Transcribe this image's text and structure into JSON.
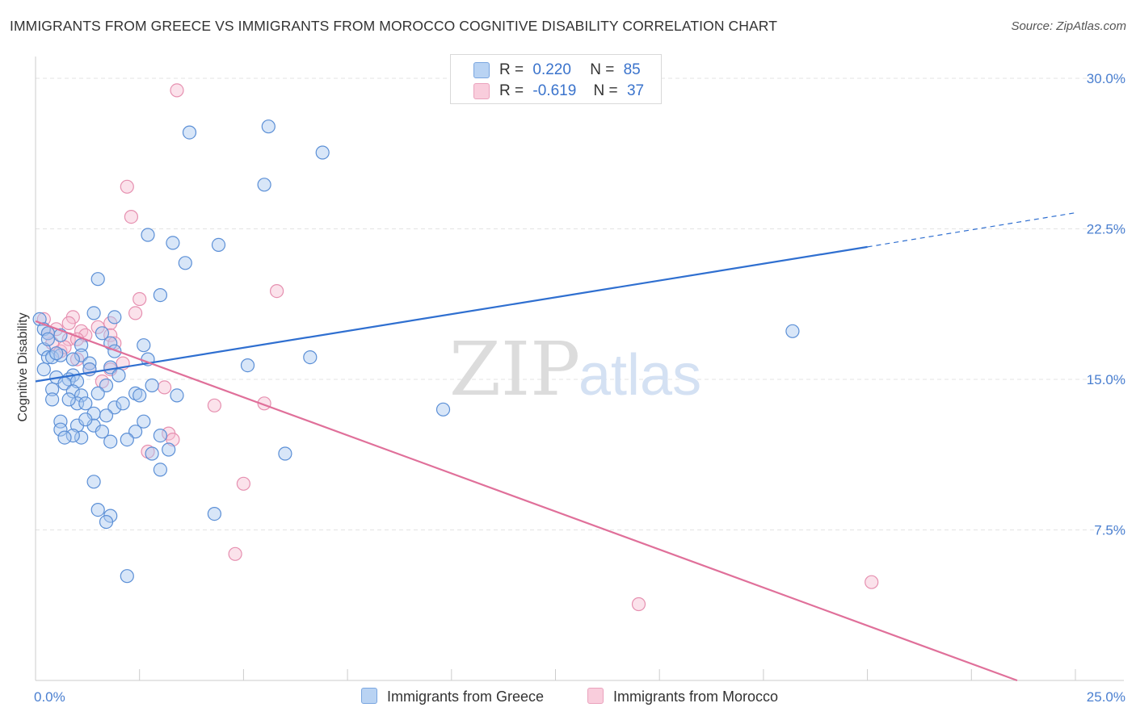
{
  "title": "IMMIGRANTS FROM GREECE VS IMMIGRANTS FROM MOROCCO COGNITIVE DISABILITY CORRELATION CHART",
  "source": "Source: ZipAtlas.com",
  "watermark": {
    "zip": "ZIP",
    "atlas": "atlas"
  },
  "legend": {
    "greece": {
      "r_label": "R =",
      "r_value": "0.220",
      "n_label": "N =",
      "n_value": "85"
    },
    "morocco": {
      "r_label": "R =",
      "r_value": "-0.619",
      "n_label": "N =",
      "n_value": "37"
    }
  },
  "colors": {
    "greece_fill": "#a9c8f0",
    "greece_stroke": "#5b8fd6",
    "greece_line": "#2f6fd0",
    "morocco_fill": "#f7bfd2",
    "morocco_stroke": "#e690b0",
    "morocco_line": "#e0709a",
    "axis_text": "#4a7fd0",
    "grid": "#e3e3e3"
  },
  "chart_data": {
    "type": "scatter",
    "title": "IMMIGRANTS FROM GREECE VS IMMIGRANTS FROM MOROCCO COGNITIVE DISABILITY CORRELATION CHART",
    "xlabel": "",
    "ylabel": "Cognitive Disability",
    "xlim": [
      0,
      25
    ],
    "ylim": [
      0,
      30.5
    ],
    "y_ticks": [
      7.5,
      15.0,
      22.5,
      30.0
    ],
    "y_tick_labels": [
      "7.5%",
      "15.0%",
      "22.5%",
      "30.0%"
    ],
    "x_tick_labels": [
      "0.0%",
      "25.0%"
    ],
    "grid": true,
    "legend_position": "top-center",
    "series": [
      {
        "name": "Immigrants from Greece",
        "points": [
          [
            3.7,
            27.3
          ],
          [
            5.6,
            27.6
          ],
          [
            6.9,
            26.3
          ],
          [
            5.5,
            24.7
          ],
          [
            2.7,
            22.2
          ],
          [
            3.3,
            21.8
          ],
          [
            4.4,
            21.7
          ],
          [
            3.6,
            20.8
          ],
          [
            1.5,
            20.0
          ],
          [
            3.0,
            19.2
          ],
          [
            1.4,
            18.3
          ],
          [
            1.9,
            18.1
          ],
          [
            0.1,
            18.0
          ],
          [
            0.2,
            17.5
          ],
          [
            0.3,
            17.3
          ],
          [
            1.6,
            17.3
          ],
          [
            1.8,
            16.8
          ],
          [
            2.6,
            16.7
          ],
          [
            1.1,
            16.7
          ],
          [
            0.2,
            16.5
          ],
          [
            1.9,
            16.4
          ],
          [
            0.3,
            16.1
          ],
          [
            0.4,
            16.1
          ],
          [
            0.6,
            16.2
          ],
          [
            1.1,
            16.2
          ],
          [
            2.7,
            16.0
          ],
          [
            6.6,
            16.1
          ],
          [
            5.1,
            15.7
          ],
          [
            1.3,
            15.8
          ],
          [
            1.8,
            15.6
          ],
          [
            0.9,
            15.2
          ],
          [
            0.5,
            15.1
          ],
          [
            0.8,
            15.0
          ],
          [
            1.0,
            14.9
          ],
          [
            0.7,
            14.8
          ],
          [
            1.7,
            14.7
          ],
          [
            2.8,
            14.7
          ],
          [
            0.4,
            14.5
          ],
          [
            0.9,
            14.4
          ],
          [
            1.1,
            14.2
          ],
          [
            1.5,
            14.3
          ],
          [
            2.4,
            14.3
          ],
          [
            2.5,
            14.2
          ],
          [
            3.4,
            14.2
          ],
          [
            0.4,
            14.0
          ],
          [
            1.0,
            13.8
          ],
          [
            1.2,
            13.8
          ],
          [
            1.9,
            13.6
          ],
          [
            1.4,
            13.3
          ],
          [
            1.7,
            13.2
          ],
          [
            0.6,
            12.9
          ],
          [
            1.0,
            12.7
          ],
          [
            1.4,
            12.7
          ],
          [
            0.6,
            12.5
          ],
          [
            2.6,
            12.9
          ],
          [
            2.4,
            12.4
          ],
          [
            1.1,
            12.1
          ],
          [
            0.9,
            12.2
          ],
          [
            0.7,
            12.1
          ],
          [
            1.8,
            11.9
          ],
          [
            2.2,
            12.0
          ],
          [
            3.0,
            12.2
          ],
          [
            3.2,
            11.5
          ],
          [
            2.8,
            11.3
          ],
          [
            6.0,
            11.3
          ],
          [
            3.0,
            10.5
          ],
          [
            1.4,
            9.9
          ],
          [
            1.5,
            8.5
          ],
          [
            1.8,
            8.2
          ],
          [
            1.7,
            7.9
          ],
          [
            4.3,
            8.3
          ],
          [
            2.2,
            5.2
          ],
          [
            9.8,
            13.5
          ],
          [
            18.2,
            17.4
          ],
          [
            0.3,
            17.0
          ],
          [
            0.5,
            16.3
          ],
          [
            0.2,
            15.5
          ],
          [
            0.8,
            14.0
          ],
          [
            1.2,
            13.0
          ],
          [
            1.6,
            12.4
          ],
          [
            2.0,
            15.2
          ],
          [
            0.6,
            17.2
          ],
          [
            0.9,
            16.0
          ],
          [
            1.3,
            15.5
          ],
          [
            2.1,
            13.8
          ]
        ]
      },
      {
        "name": "Immigrants from Morocco",
        "points": [
          [
            3.4,
            29.4
          ],
          [
            2.2,
            24.6
          ],
          [
            2.3,
            23.1
          ],
          [
            5.8,
            19.4
          ],
          [
            2.5,
            19.0
          ],
          [
            2.4,
            18.3
          ],
          [
            0.2,
            18.0
          ],
          [
            0.9,
            18.1
          ],
          [
            0.8,
            17.8
          ],
          [
            1.8,
            17.8
          ],
          [
            0.5,
            17.5
          ],
          [
            1.5,
            17.6
          ],
          [
            1.1,
            17.4
          ],
          [
            1.2,
            17.2
          ],
          [
            1.8,
            17.2
          ],
          [
            0.8,
            17.0
          ],
          [
            1.0,
            17.0
          ],
          [
            1.9,
            16.8
          ],
          [
            0.4,
            16.8
          ],
          [
            0.6,
            16.4
          ],
          [
            1.0,
            16.0
          ],
          [
            2.1,
            15.8
          ],
          [
            1.8,
            15.5
          ],
          [
            1.3,
            15.5
          ],
          [
            1.6,
            14.9
          ],
          [
            3.1,
            14.6
          ],
          [
            4.3,
            13.7
          ],
          [
            5.5,
            13.8
          ],
          [
            3.2,
            12.3
          ],
          [
            3.3,
            12.0
          ],
          [
            2.7,
            11.4
          ],
          [
            5.0,
            9.8
          ],
          [
            4.8,
            6.3
          ],
          [
            20.1,
            4.9
          ],
          [
            14.5,
            3.8
          ],
          [
            0.3,
            17.3
          ],
          [
            0.7,
            16.6
          ]
        ]
      }
    ],
    "trendlines": [
      {
        "series": "Immigrants from Greece",
        "x": [
          0,
          20
        ],
        "y": [
          14.9,
          21.6
        ],
        "dashed_x": [
          20,
          25
        ],
        "dashed_y": [
          21.6,
          23.3
        ]
      },
      {
        "series": "Immigrants from Morocco",
        "x": [
          0,
          23.6
        ],
        "y": [
          17.9,
          0
        ]
      }
    ]
  },
  "bottom_legend": {
    "greece_label": "Immigrants from Greece",
    "morocco_label": "Immigrants from Morocco"
  }
}
